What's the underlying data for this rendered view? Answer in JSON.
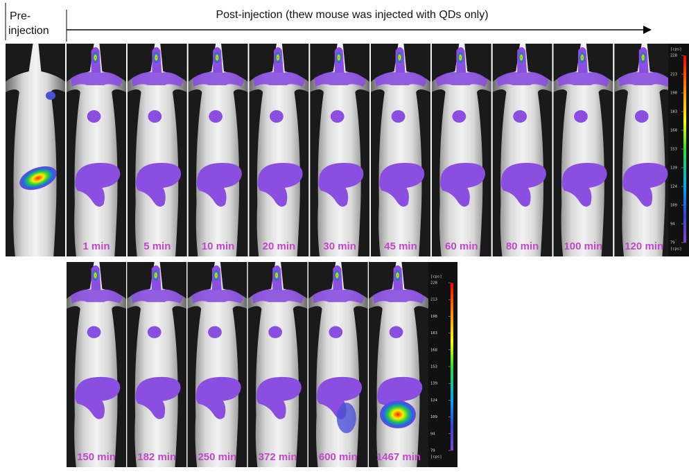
{
  "header": {
    "pre_label_lines": [
      "Pre-",
      "injection"
    ],
    "post_label": "Post-injection (thew mouse was injected with QDs only)"
  },
  "rows": [
    {
      "times": [
        "1 min",
        "5 min",
        "10 min",
        "20 min",
        "30 min",
        "45 min",
        "60 min",
        "80 min",
        "100 min",
        "120 min"
      ]
    },
    {
      "times": [
        "150 min",
        "182 min",
        "250 min",
        "372 min",
        "600 min",
        "1467 min"
      ]
    }
  ],
  "colorbar": {
    "unit": "[cps]",
    "ticks": [
      "228",
      "213",
      "198",
      "183",
      "168",
      "153",
      "139",
      "124",
      "109",
      "94",
      "79"
    ]
  }
}
